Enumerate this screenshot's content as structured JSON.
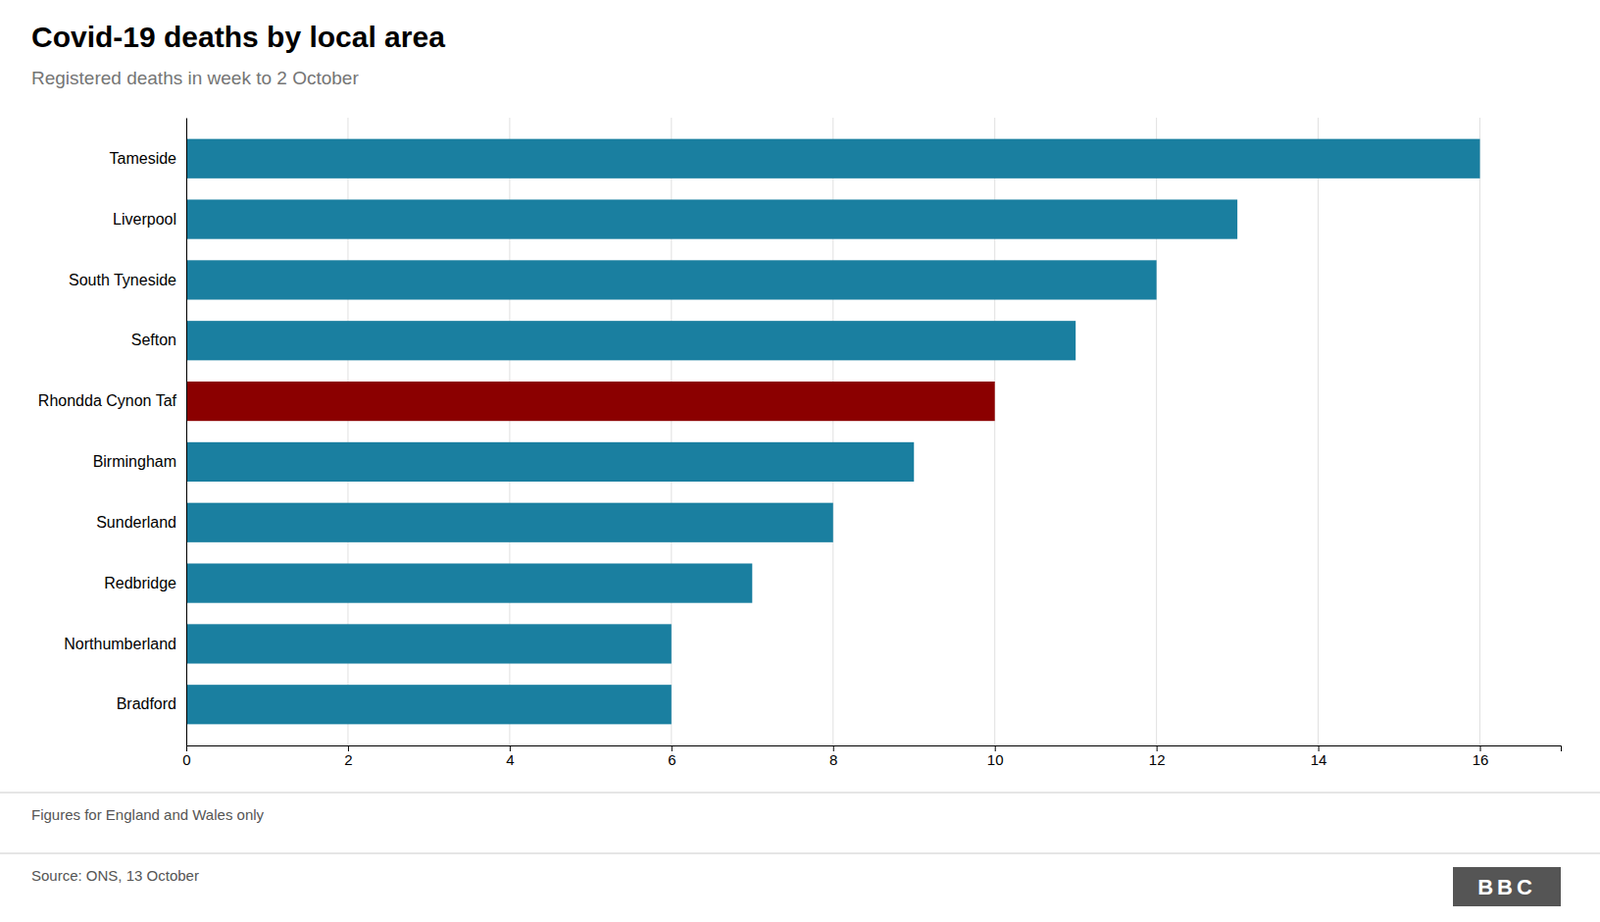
{
  "chart_data": {
    "type": "bar",
    "orientation": "horizontal",
    "title": "Covid-19 deaths by local area",
    "subtitle": "Registered deaths in week to 2 October",
    "annotations": [
      "Figures for England and Wales only",
      "Source: ONS, 13 October",
      "BBC"
    ],
    "categories": [
      "Tameside",
      "Liverpool",
      "South Tyneside",
      "Sefton",
      "Rhondda Cynon Taf",
      "Birmingham",
      "Sunderland",
      "Redbridge",
      "Northumberland",
      "Bradford"
    ],
    "values": [
      16,
      13,
      12,
      11,
      10,
      9,
      8,
      7,
      6,
      6
    ],
    "colors": [
      "#1a7fa0",
      "#1a7fa0",
      "#1a7fa0",
      "#1a7fa0",
      "#8b0000",
      "#1a7fa0",
      "#1a7fa0",
      "#1a7fa0",
      "#1a7fa0",
      "#1a7fa0"
    ],
    "xlim": [
      0,
      17
    ],
    "xticks": [
      0,
      2,
      4,
      6,
      8,
      10,
      12,
      14,
      16
    ],
    "grid": true
  }
}
